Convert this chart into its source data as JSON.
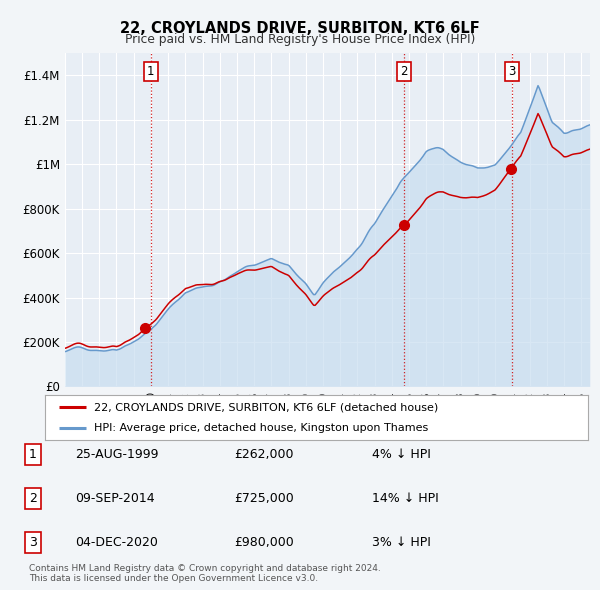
{
  "title": "22, CROYLANDS DRIVE, SURBITON, KT6 6LF",
  "subtitle": "Price paid vs. HM Land Registry's House Price Index (HPI)",
  "legend_line1": "22, CROYLANDS DRIVE, SURBITON, KT6 6LF (detached house)",
  "legend_line2": "HPI: Average price, detached house, Kingston upon Thames",
  "table_rows": [
    {
      "num": "1",
      "date": "25-AUG-1999",
      "price": "£262,000",
      "pct": "4% ↓ HPI"
    },
    {
      "num": "2",
      "date": "09-SEP-2014",
      "price": "£725,000",
      "pct": "14% ↓ HPI"
    },
    {
      "num": "3",
      "date": "04-DEC-2020",
      "price": "£980,000",
      "pct": "3% ↓ HPI"
    }
  ],
  "footer": "Contains HM Land Registry data © Crown copyright and database right 2024.\nThis data is licensed under the Open Government Licence v3.0.",
  "sale_color": "#cc0000",
  "hpi_color": "#6699cc",
  "hpi_fill_color": "#ddeeff",
  "background_color": "#f0f4f8",
  "plot_bg_color": "#e8eef4",
  "grid_color": "#ffffff",
  "ylim": [
    0,
    1500000
  ],
  "yticks": [
    0,
    200000,
    400000,
    600000,
    800000,
    1000000,
    1200000,
    1400000
  ],
  "ytick_labels": [
    "£0",
    "£200K",
    "£400K",
    "£600K",
    "£800K",
    "£1M",
    "£1.2M",
    "£1.4M"
  ],
  "vline_years": [
    2000.0,
    2014.7,
    2021.0
  ],
  "vline_color": "#cc0000",
  "marker_years": [
    1999.65,
    2014.69,
    2020.92
  ],
  "marker_prices": [
    262000,
    725000,
    980000
  ],
  "marker_labels": [
    "1",
    "2",
    "3"
  ],
  "xmin": 1995,
  "xmax": 2025.5
}
